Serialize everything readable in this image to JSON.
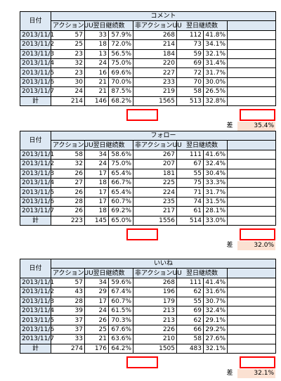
{
  "header": {
    "date_label": "日付",
    "action_uu": "アクションUU",
    "retention": "翌日継続数",
    "non_action_uu": "非アクションUU",
    "total_label": "計",
    "diff_label": "差"
  },
  "sections": [
    {
      "title": "コメント",
      "rows": [
        [
          "2013/11/1",
          "57",
          "33",
          "57.9%",
          "268",
          "112",
          "41.8%"
        ],
        [
          "2013/11/2",
          "25",
          "18",
          "72.0%",
          "214",
          "73",
          "34.1%"
        ],
        [
          "2013/11/3",
          "23",
          "13",
          "56.5%",
          "184",
          "59",
          "32.1%"
        ],
        [
          "2013/11/4",
          "32",
          "24",
          "75.0%",
          "220",
          "69",
          "31.4%"
        ],
        [
          "2013/11/5",
          "23",
          "16",
          "69.6%",
          "227",
          "72",
          "31.7%"
        ],
        [
          "2013/11/6",
          "30",
          "21",
          "70.0%",
          "233",
          "70",
          "30.0%"
        ],
        [
          "2013/11/7",
          "24",
          "21",
          "87.5%",
          "219",
          "58",
          "26.5%"
        ]
      ],
      "total": [
        "214",
        "146",
        "68.2%",
        "1565",
        "513",
        "32.8%"
      ],
      "diff": "35.4%"
    },
    {
      "title": "フォロー",
      "rows": [
        [
          "2013/11/1",
          "58",
          "34",
          "58.6%",
          "267",
          "111",
          "41.6%"
        ],
        [
          "2013/11/2",
          "32",
          "24",
          "75.0%",
          "207",
          "67",
          "32.4%"
        ],
        [
          "2013/11/3",
          "26",
          "17",
          "65.4%",
          "181",
          "55",
          "30.4%"
        ],
        [
          "2013/11/4",
          "27",
          "18",
          "66.7%",
          "225",
          "75",
          "33.3%"
        ],
        [
          "2013/11/5",
          "26",
          "17",
          "65.4%",
          "224",
          "71",
          "31.7%"
        ],
        [
          "2013/11/6",
          "28",
          "17",
          "60.7%",
          "235",
          "74",
          "31.5%"
        ],
        [
          "2013/11/7",
          "26",
          "18",
          "69.2%",
          "217",
          "61",
          "28.1%"
        ]
      ],
      "total": [
        "223",
        "145",
        "65.0%",
        "1556",
        "514",
        "33.0%"
      ],
      "diff": "32.0%"
    },
    {
      "title": "いいね",
      "rows": [
        [
          "2013/11/1",
          "57",
          "34",
          "59.6%",
          "268",
          "111",
          "41.4%"
        ],
        [
          "2013/11/2",
          "43",
          "29",
          "67.4%",
          "196",
          "62",
          "31.6%"
        ],
        [
          "2013/11/3",
          "28",
          "17",
          "60.7%",
          "179",
          "55",
          "30.7%"
        ],
        [
          "2013/11/4",
          "39",
          "24",
          "61.5%",
          "213",
          "69",
          "32.4%"
        ],
        [
          "2013/11/5",
          "37",
          "26",
          "70.3%",
          "213",
          "62",
          "29.1%"
        ],
        [
          "2013/11/6",
          "37",
          "25",
          "67.6%",
          "226",
          "66",
          "29.2%"
        ],
        [
          "2013/11/7",
          "33",
          "21",
          "63.6%",
          "210",
          "58",
          "27.6%"
        ]
      ],
      "total": [
        "274",
        "176",
        "64.2%",
        "1505",
        "483",
        "32.1%"
      ],
      "diff": "32.1%"
    }
  ],
  "colors": {
    "header_fill": "#dde8f3",
    "diff_fill": "#fbe1d2",
    "highlight_border": "#ff0000"
  }
}
